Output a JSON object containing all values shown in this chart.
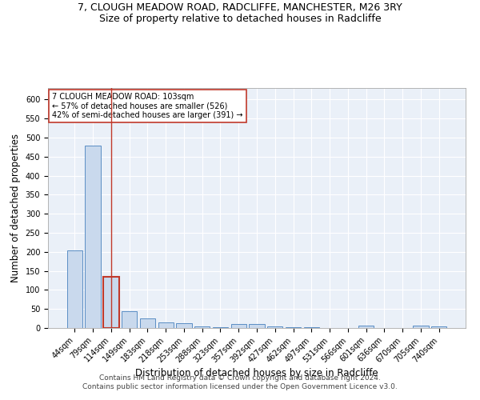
{
  "title_line1": "7, CLOUGH MEADOW ROAD, RADCLIFFE, MANCHESTER, M26 3RY",
  "title_line2": "Size of property relative to detached houses in Radcliffe",
  "xlabel": "Distribution of detached houses by size in Radcliffe",
  "ylabel": "Number of detached properties",
  "categories": [
    "44sqm",
    "79sqm",
    "114sqm",
    "149sqm",
    "183sqm",
    "218sqm",
    "253sqm",
    "288sqm",
    "323sqm",
    "357sqm",
    "392sqm",
    "427sqm",
    "462sqm",
    "497sqm",
    "531sqm",
    "566sqm",
    "601sqm",
    "636sqm",
    "670sqm",
    "705sqm",
    "740sqm"
  ],
  "values": [
    204,
    478,
    134,
    44,
    25,
    15,
    13,
    5,
    2,
    10,
    10,
    4,
    2,
    2,
    1,
    0,
    6,
    1,
    0,
    6,
    5
  ],
  "bar_color": "#c9d9ed",
  "bar_edge_color": "#5b8ec4",
  "highlight_bar_index": 2,
  "highlight_bar_edge_color": "#c0392b",
  "vline_color": "#c0392b",
  "annotation_text": "7 CLOUGH MEADOW ROAD: 103sqm\n← 57% of detached houses are smaller (526)\n42% of semi-detached houses are larger (391) →",
  "annotation_box_color": "white",
  "annotation_box_edge_color": "#c0392b",
  "ylim": [
    0,
    630
  ],
  "yticks": [
    0,
    50,
    100,
    150,
    200,
    250,
    300,
    350,
    400,
    450,
    500,
    550,
    600
  ],
  "footer_line1": "Contains HM Land Registry data © Crown copyright and database right 2024.",
  "footer_line2": "Contains public sector information licensed under the Open Government Licence v3.0.",
  "plot_bg_color": "#eaf0f8",
  "title_fontsize": 9,
  "subtitle_fontsize": 9,
  "axis_label_fontsize": 8.5,
  "tick_fontsize": 7,
  "footer_fontsize": 6.5,
  "annotation_fontsize": 7
}
